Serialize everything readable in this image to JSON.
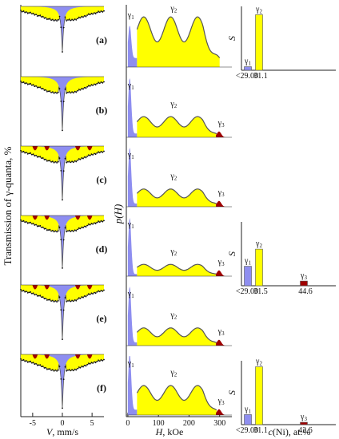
{
  "colors": {
    "blue": "#8e8ef0",
    "yellow": "#ffff00",
    "red": "#a00000",
    "dots": "#111111",
    "fit_line": "#555555"
  },
  "chart_data": {
    "type": "composite",
    "ylabel": "Transmission of γ-quanta, %",
    "mossbauer": {
      "xlabel_var": "V",
      "xlabel_unit": ", mm/s",
      "x_ticks": [
        "-5",
        "0",
        "5"
      ],
      "panels": [
        {
          "label": "(a)",
          "depth": 0.78,
          "red": false
        },
        {
          "label": "(b)",
          "depth": 0.92,
          "red": false
        },
        {
          "label": "(c)",
          "depth": 0.92,
          "red": true
        },
        {
          "label": "(d)",
          "depth": 0.9,
          "red": true
        },
        {
          "label": "(e)",
          "depth": 0.93,
          "red": true
        },
        {
          "label": "(f)",
          "depth": 0.92,
          "red": true
        }
      ]
    },
    "distribution": {
      "ylabel": "p(H)",
      "xlabel_var": "H",
      "xlabel_unit": ", kOe",
      "x_ticks": [
        "0",
        "100",
        "200",
        "300"
      ],
      "peak_labels": [
        "γ1",
        "γ2",
        "γ3"
      ],
      "panels": [
        {
          "g1": 0.55,
          "g2_level": 0.85,
          "has_g3": false
        },
        {
          "g1": 0.95,
          "g2_level": 0.35,
          "has_g3": true
        },
        {
          "g1": 0.95,
          "g2_level": 0.3,
          "has_g3": true
        },
        {
          "g1": 0.95,
          "g2_level": 0.2,
          "has_g3": true
        },
        {
          "g1": 0.95,
          "g2_level": 0.3,
          "has_g3": true
        },
        {
          "g1": 0.95,
          "g2_level": 0.5,
          "has_g3": true
        }
      ]
    },
    "phase_fractions": {
      "ylabel": "S",
      "xlabel_var": "c",
      "xlabel_unit": "(Ni), at.%",
      "panels": [
        {
          "row": "a",
          "bars": [
            {
              "name": "γ1",
              "value": 0.06,
              "tick": "<29.00"
            },
            {
              "name": "γ2",
              "value": 0.94,
              "tick": "31.1"
            }
          ]
        },
        {
          "row": "d",
          "bars": [
            {
              "name": "γ1",
              "value": 0.33,
              "tick": "<29.00"
            },
            {
              "name": "γ2",
              "value": 0.62,
              "tick": "31.5"
            },
            {
              "name": "γ3",
              "value": 0.08,
              "tick": "44.6"
            }
          ]
        },
        {
          "row": "f",
          "bars": [
            {
              "name": "γ1",
              "value": 0.17,
              "tick": "<29.00"
            },
            {
              "name": "γ2",
              "value": 0.98,
              "tick": "31.1"
            },
            {
              "name": "γ3",
              "value": 0.04,
              "tick": "42.6"
            }
          ]
        }
      ]
    }
  }
}
